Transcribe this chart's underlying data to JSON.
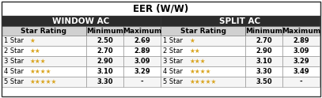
{
  "title": "EER (W/W)",
  "col1_header": "WINDOW AC",
  "col2_header": "SPLIT AC",
  "subheaders": [
    "Star Rating",
    "Minimum",
    "Maximum",
    "Star Rating",
    "Minimum",
    "Maximum"
  ],
  "rows": [
    [
      "1 Star",
      "2.50",
      "2.69",
      "1 Star",
      "2.70",
      "2.89"
    ],
    [
      "2 Star",
      "2.70",
      "2.89",
      "2 Star",
      "2.90",
      "3.09"
    ],
    [
      "3 Star",
      "2.90",
      "3.09",
      "3 Star",
      "3.10",
      "3.29"
    ],
    [
      "4 Star",
      "3.10",
      "3.29",
      "4 Star",
      "3.30",
      "3.49"
    ],
    [
      "5 Star",
      "3.30",
      "-",
      "5 Star",
      "3.50",
      "-"
    ]
  ],
  "star_counts": [
    1,
    2,
    3,
    4,
    5
  ],
  "bg_title": "#ffffff",
  "bg_section": "#2b2b2b",
  "bg_colhdr": "#d0d0d0",
  "bg_datarow": "#f5f5f5",
  "bg_datarow_alt": "#ffffff",
  "star_color": "#DAA520",
  "border_color": "#555555",
  "text_color_dark": "#ffffff",
  "text_color": "#000000",
  "title_fontsize": 8.5,
  "section_fontsize": 7.5,
  "header_fontsize": 6.5,
  "cell_fontsize": 6.0,
  "figw": 4.07,
  "figh": 1.24,
  "dpi": 100
}
